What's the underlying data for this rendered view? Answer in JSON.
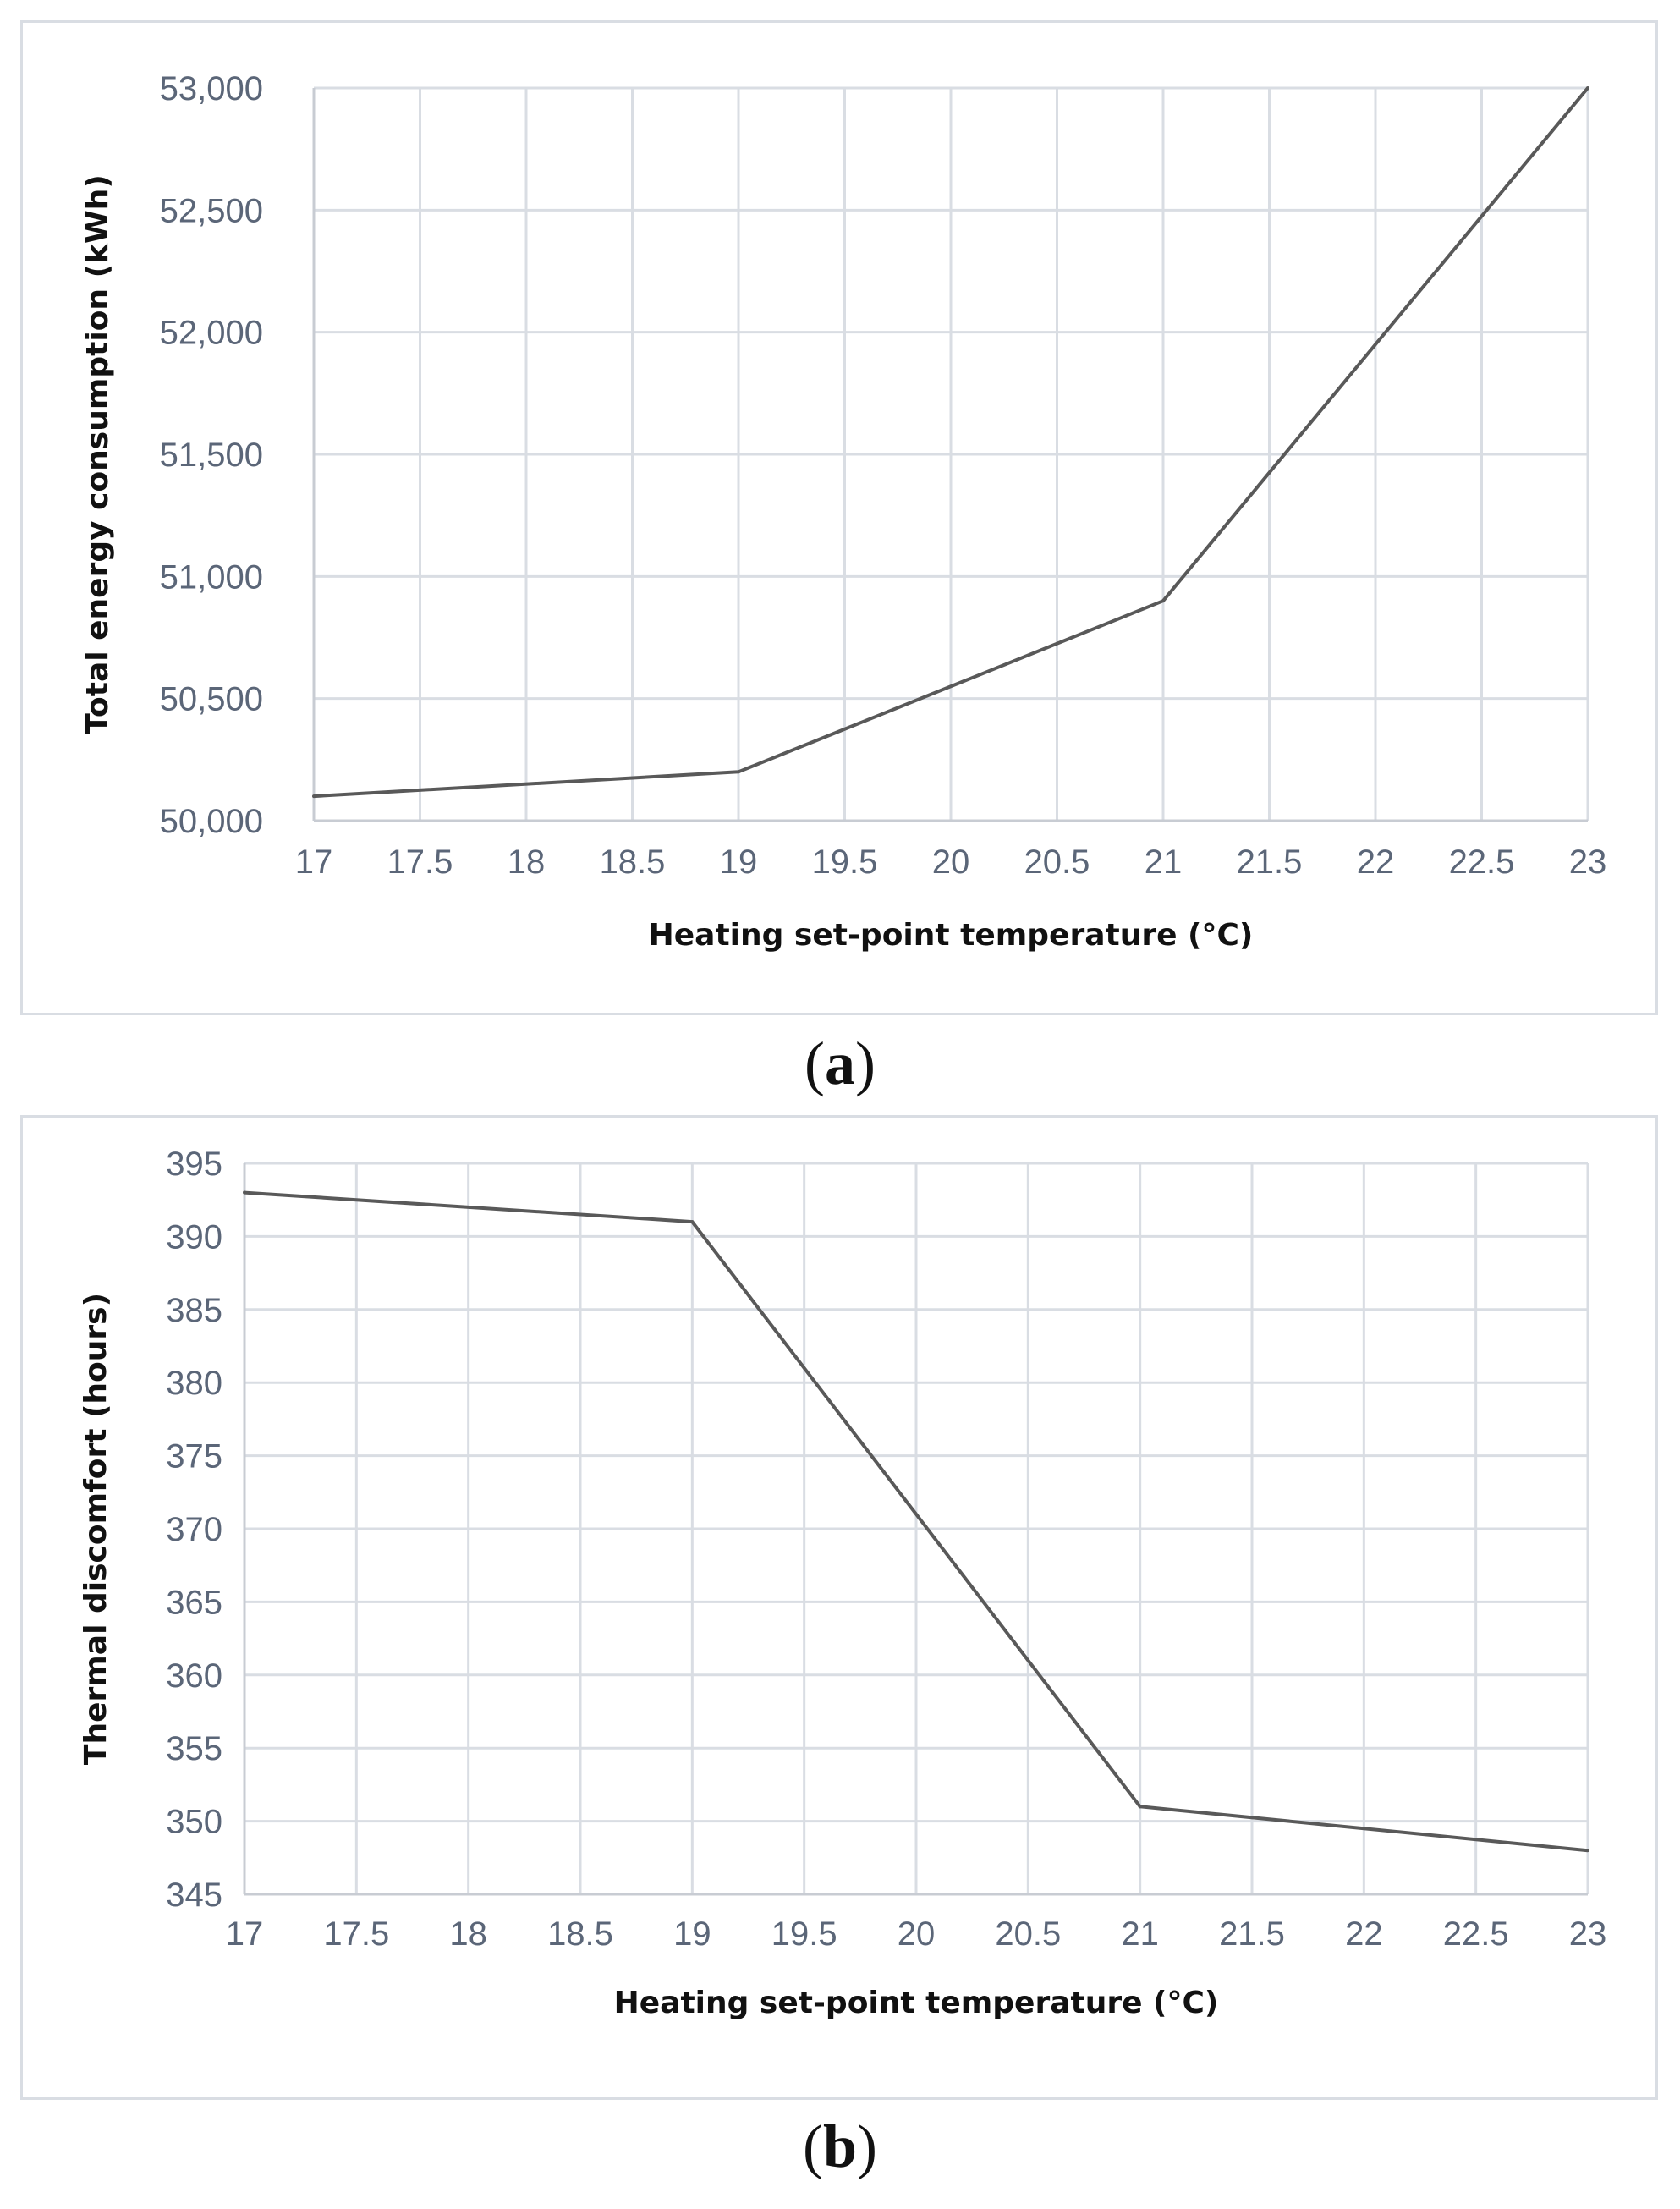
{
  "chart_data": [
    {
      "id": "a",
      "type": "line",
      "caption": "(a)",
      "caption_letter": "a",
      "xlabel": "Heating set-point temperature (°C)",
      "ylabel": "Total energy consumption (kWh)",
      "x_ticks": [
        "17",
        "17.5",
        "18",
        "18.5",
        "19",
        "19.5",
        "20",
        "20.5",
        "21",
        "21.5",
        "22",
        "22.5",
        "23"
      ],
      "y_ticks": [
        "50,000",
        "50,500",
        "51,000",
        "51,500",
        "52,000",
        "52,500",
        "53,000"
      ],
      "xlim": [
        17,
        23
      ],
      "ylim": [
        50000,
        53000
      ],
      "grid": true,
      "series": [
        {
          "name": "Total energy consumption",
          "x": [
            17,
            19,
            21,
            23
          ],
          "values": [
            50100,
            50200,
            50900,
            53000
          ]
        }
      ]
    },
    {
      "id": "b",
      "type": "line",
      "caption": "(b)",
      "caption_letter": "b",
      "xlabel": "Heating set-point temperature (°C)",
      "ylabel": "Thermal discomfort (hours)",
      "x_ticks": [
        "17",
        "17.5",
        "18",
        "18.5",
        "19",
        "19.5",
        "20",
        "20.5",
        "21",
        "21.5",
        "22",
        "22.5",
        "23"
      ],
      "y_ticks": [
        "345",
        "350",
        "355",
        "360",
        "365",
        "370",
        "375",
        "380",
        "385",
        "390",
        "395"
      ],
      "xlim": [
        17,
        23
      ],
      "ylim": [
        345,
        395
      ],
      "grid": true,
      "series": [
        {
          "name": "Thermal discomfort",
          "x": [
            17,
            19,
            21,
            23
          ],
          "values": [
            393,
            391,
            351,
            348
          ]
        }
      ]
    }
  ]
}
